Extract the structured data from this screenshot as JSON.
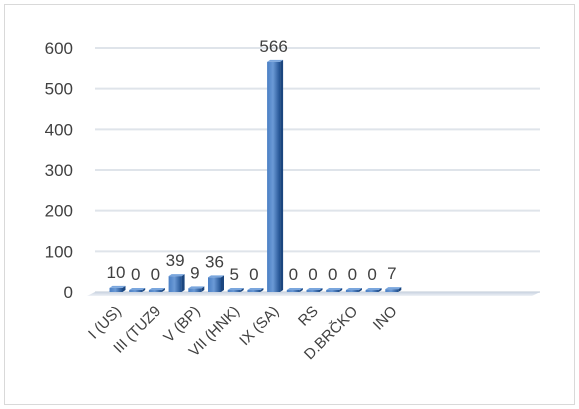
{
  "chart_data": {
    "type": "bar",
    "categories": [
      "I (US)",
      "",
      "III (TUZ9",
      "",
      "V (BP)",
      "",
      "VII (HNK)",
      "",
      "IX (SA)",
      "",
      "RS",
      "",
      "D.BRČKO",
      "",
      "INO"
    ],
    "values": [
      10,
      0,
      0,
      39,
      9,
      36,
      5,
      0,
      566,
      0,
      0,
      0,
      0,
      0,
      7
    ],
    "data_labels": [
      "10",
      "0",
      "0",
      "39",
      "9",
      "36",
      "5",
      "0",
      "566",
      "0",
      "0",
      "0",
      "0",
      "0",
      "7"
    ],
    "y_ticks": [
      "0",
      "100",
      "200",
      "300",
      "400",
      "500",
      "600"
    ],
    "ylim": [
      0,
      600
    ],
    "grid": true,
    "legend": "none",
    "bar_color": "#2e5f9e"
  }
}
